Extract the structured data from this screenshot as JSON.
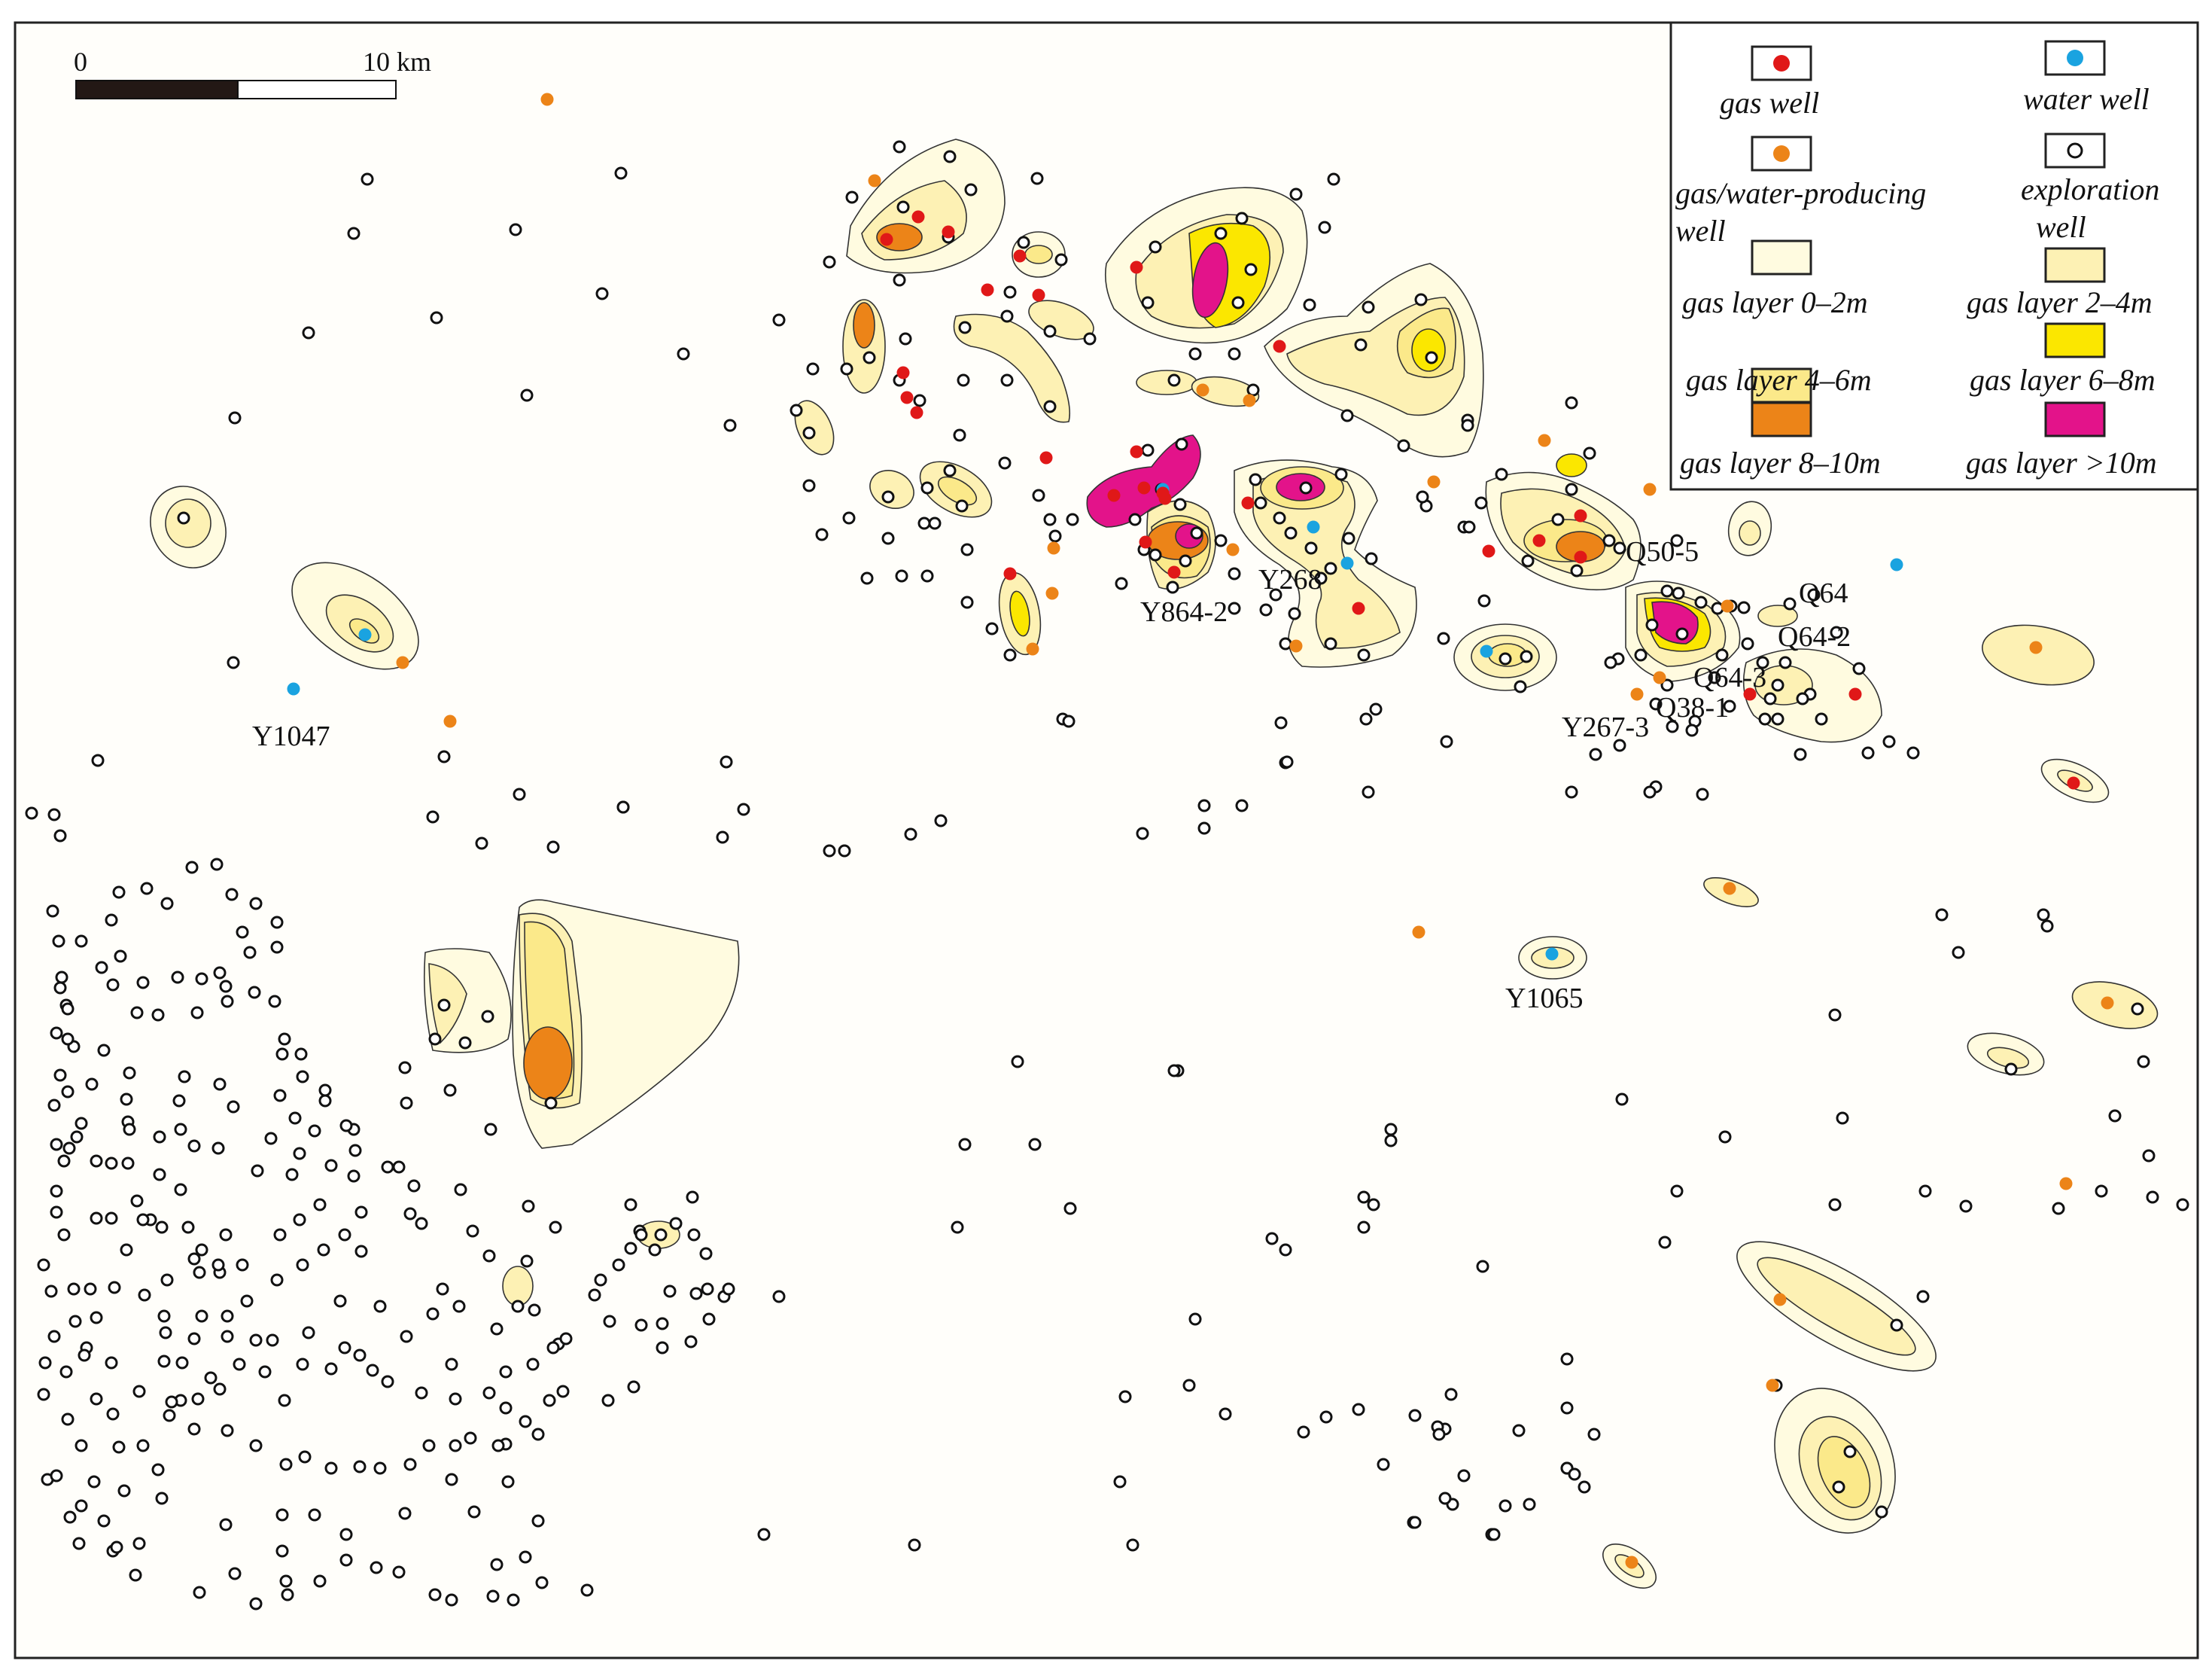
{
  "colors": {
    "gas_well": "#e01818",
    "water_well": "#1aa3e0",
    "gas_water_well": "#ec8418",
    "layer_0_2": "#fffbe0",
    "layer_2_4": "#fdf1b4",
    "layer_4_6": "#fbe98a",
    "layer_6_8": "#fbe700",
    "layer_8_10": "#ec8418",
    "layer_gt10": "#e3138a"
  },
  "scale_bar": {
    "start_label": "0",
    "end_label": "10 km"
  },
  "legend": {
    "gas_well": "gas well",
    "water_well": "water well",
    "gas_water_line1": "gas/water-producing",
    "gas_water_line2": "well",
    "exploration_line1": "exploration",
    "exploration_line2": "well",
    "layer_0_2": "gas layer 0–2m",
    "layer_2_4": "gas layer 2–4m",
    "layer_4_6": "gas layer 4–6m",
    "layer_6_8": "gas layer 6–8m",
    "layer_8_10": "gas layer 8–10m",
    "layer_gt10": "gas layer >10m"
  },
  "well_labels": [
    "Y1047",
    "Y864-2",
    "Y268",
    "Q50-5",
    "Q64",
    "Q64-2",
    "Q64-3",
    "Y267-3",
    "Q38-1",
    "Y1065"
  ]
}
